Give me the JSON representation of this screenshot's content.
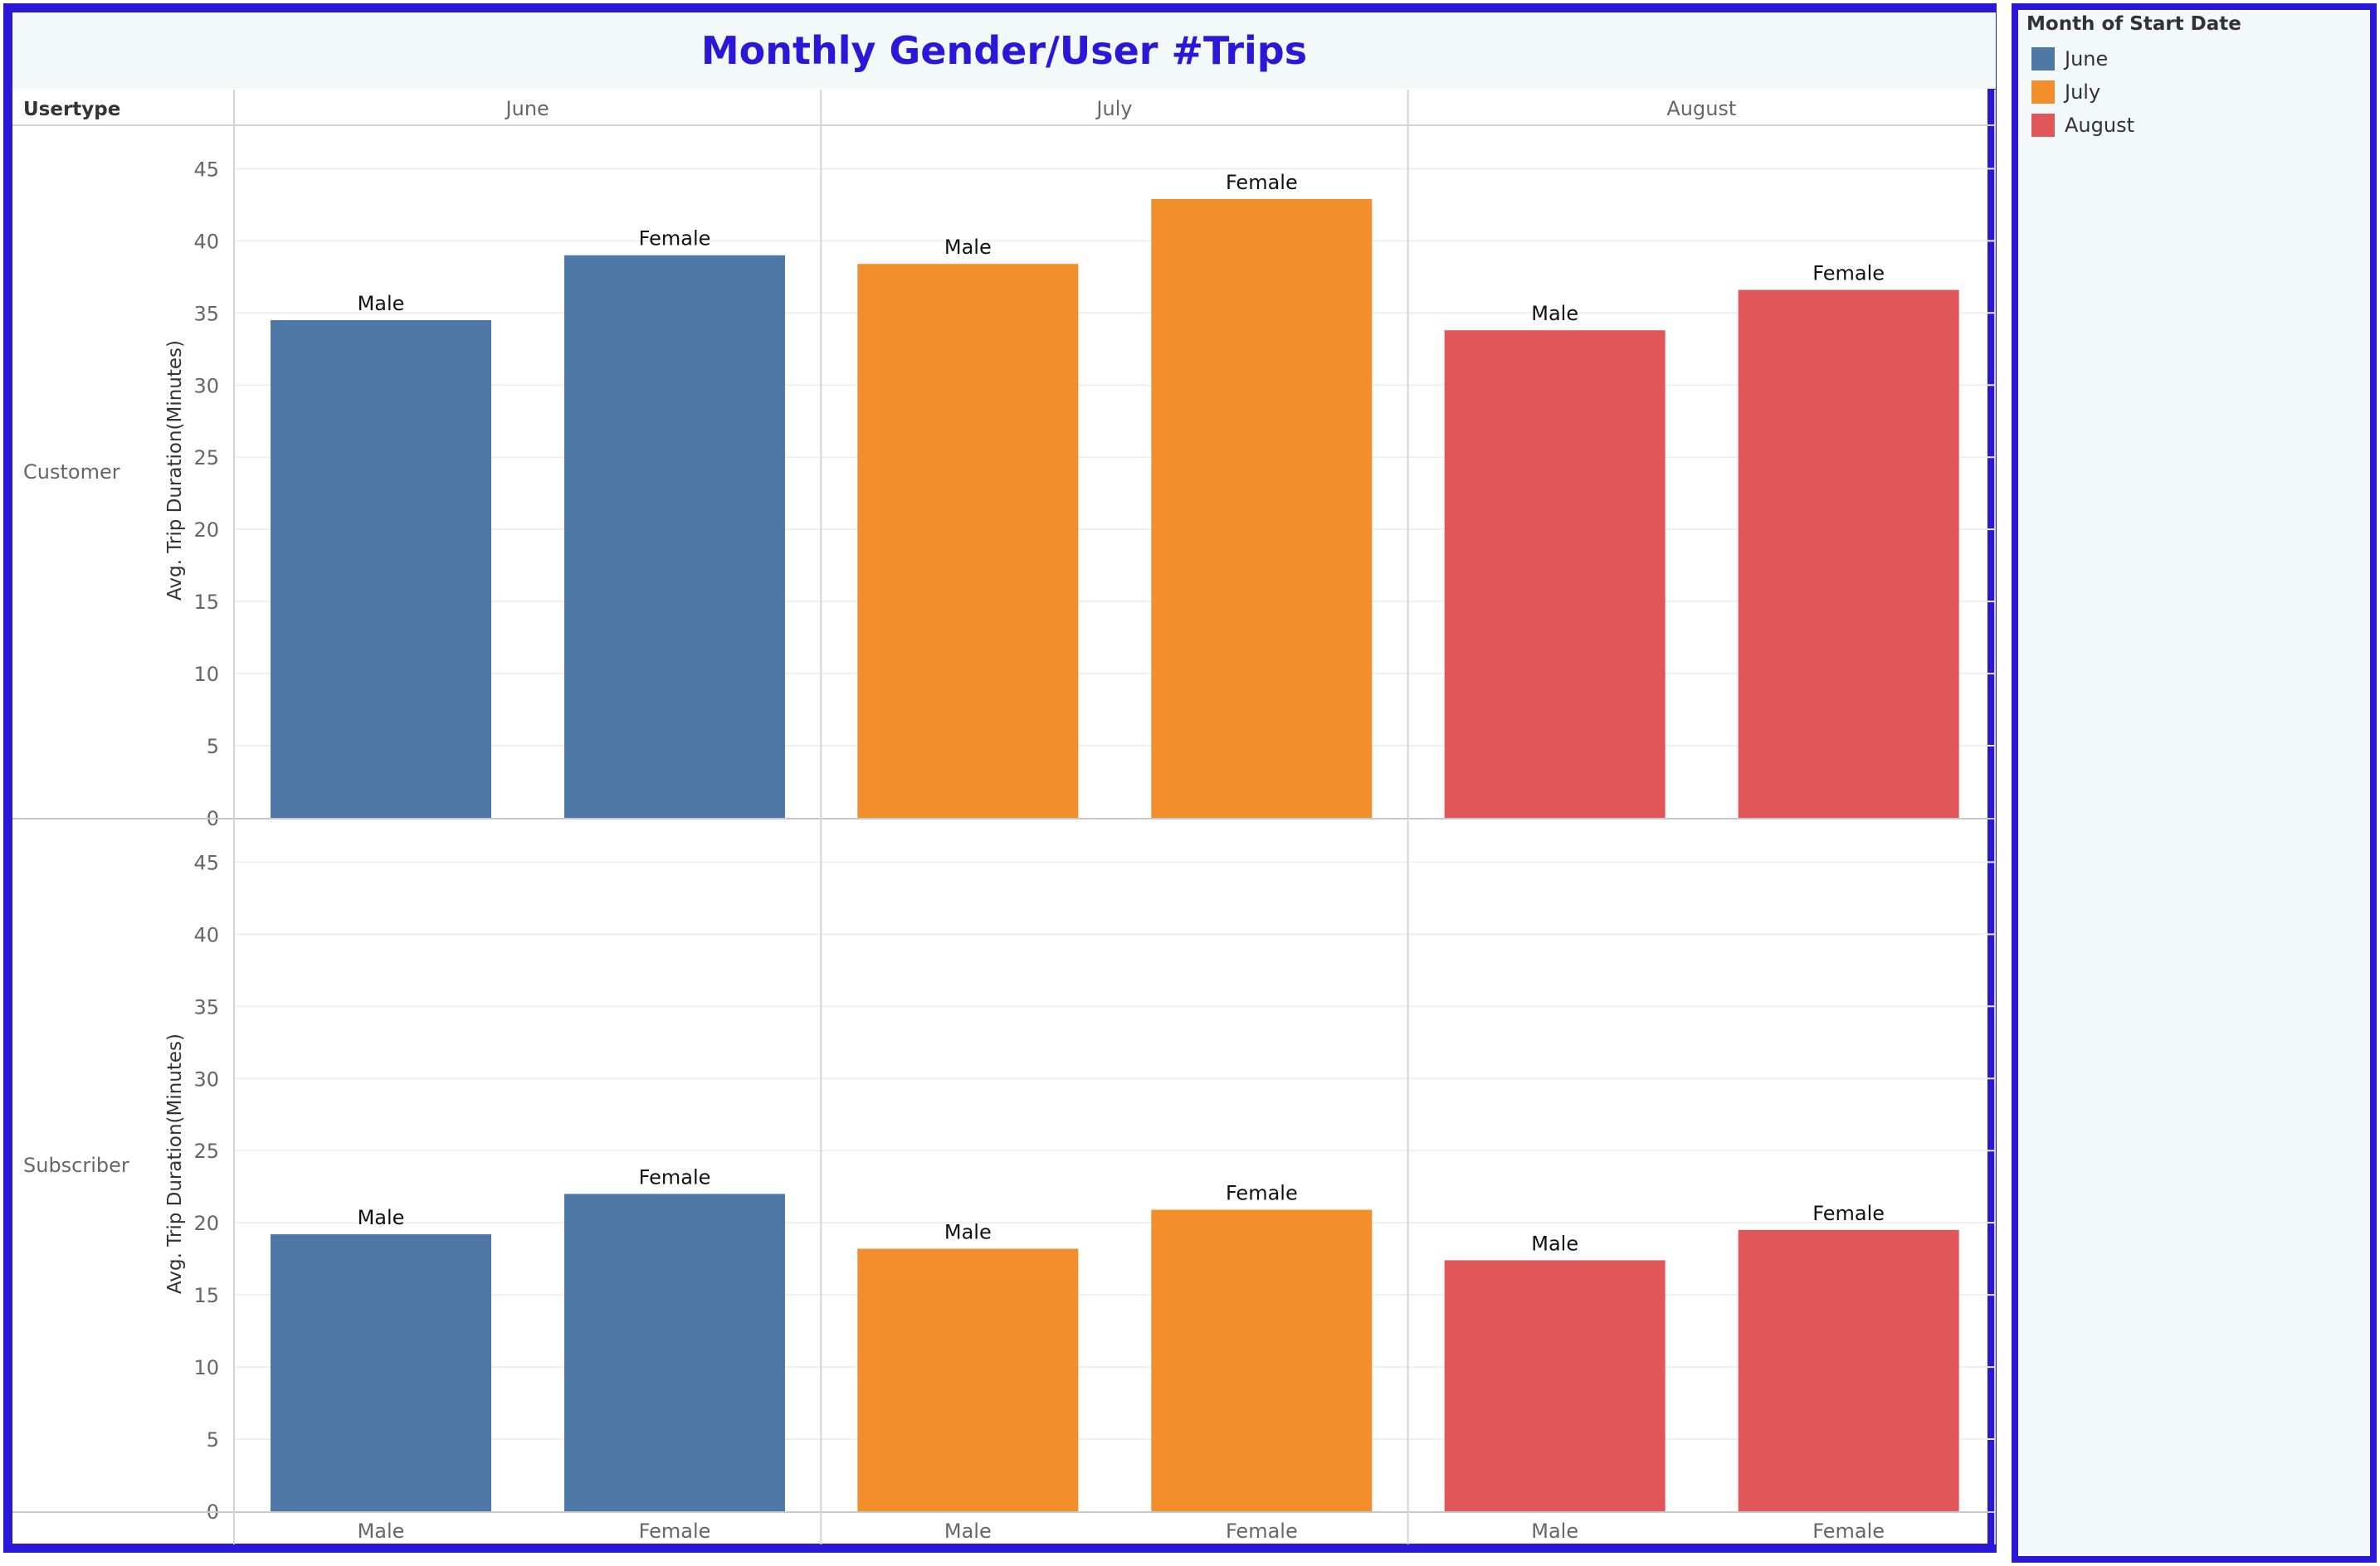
{
  "chart_data": {
    "type": "bar",
    "title": "Monthly Gender/User #Trips",
    "row_header": "Usertype",
    "ylabel": "Avg. Trip Duration(Minutes)",
    "ylim": [
      0,
      46
    ],
    "yticks": [
      0,
      5,
      10,
      15,
      20,
      25,
      30,
      35,
      40,
      45
    ],
    "columns": [
      "June",
      "July",
      "August"
    ],
    "categories": [
      "Male",
      "Female"
    ],
    "rows": [
      {
        "usertype": "Customer",
        "series": [
          {
            "name": "June",
            "values": [
              34.5,
              39.0
            ]
          },
          {
            "name": "July",
            "values": [
              38.4,
              42.9
            ]
          },
          {
            "name": "August",
            "values": [
              33.8,
              36.6
            ]
          }
        ]
      },
      {
        "usertype": "Subscriber",
        "series": [
          {
            "name": "June",
            "values": [
              19.2,
              22.0
            ]
          },
          {
            "name": "July",
            "values": [
              18.2,
              20.9
            ]
          },
          {
            "name": "August",
            "values": [
              17.4,
              19.5
            ]
          }
        ]
      }
    ],
    "grid": true,
    "legend_position": "right"
  },
  "legend": {
    "title": "Month of Start Date",
    "items": [
      {
        "label": "June",
        "color": "#4e79a7"
      },
      {
        "label": "July",
        "color": "#f28e2c"
      },
      {
        "label": "August",
        "color": "#e15759"
      }
    ]
  }
}
